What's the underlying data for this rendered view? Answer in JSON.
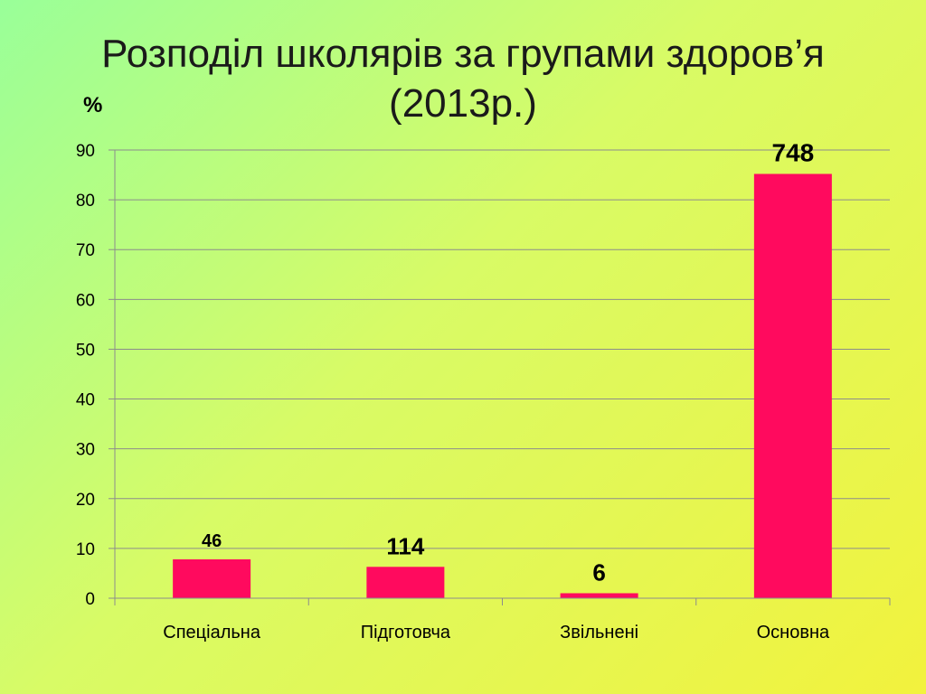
{
  "title_line1": "Розподіл школярів за групами здоров’я",
  "title_line2": "(2013р.)",
  "unit_label": "%",
  "chart_data": {
    "type": "bar",
    "categories": [
      "Спеціальна",
      "Підготовча",
      "Звільнені",
      "Основна"
    ],
    "values": [
      7.8,
      6.3,
      1.0,
      85.2
    ],
    "data_labels": [
      "46",
      "114",
      "6",
      "748"
    ],
    "ylim": [
      0,
      90
    ],
    "yticks": [
      "0",
      "10",
      "20",
      "30",
      "40",
      "50",
      "60",
      "70",
      "80",
      "90"
    ],
    "ylabel": "%",
    "xlabel": "",
    "grid": true,
    "bar_color": "#ff0a5e",
    "grid_color": "#8c8c8c"
  }
}
